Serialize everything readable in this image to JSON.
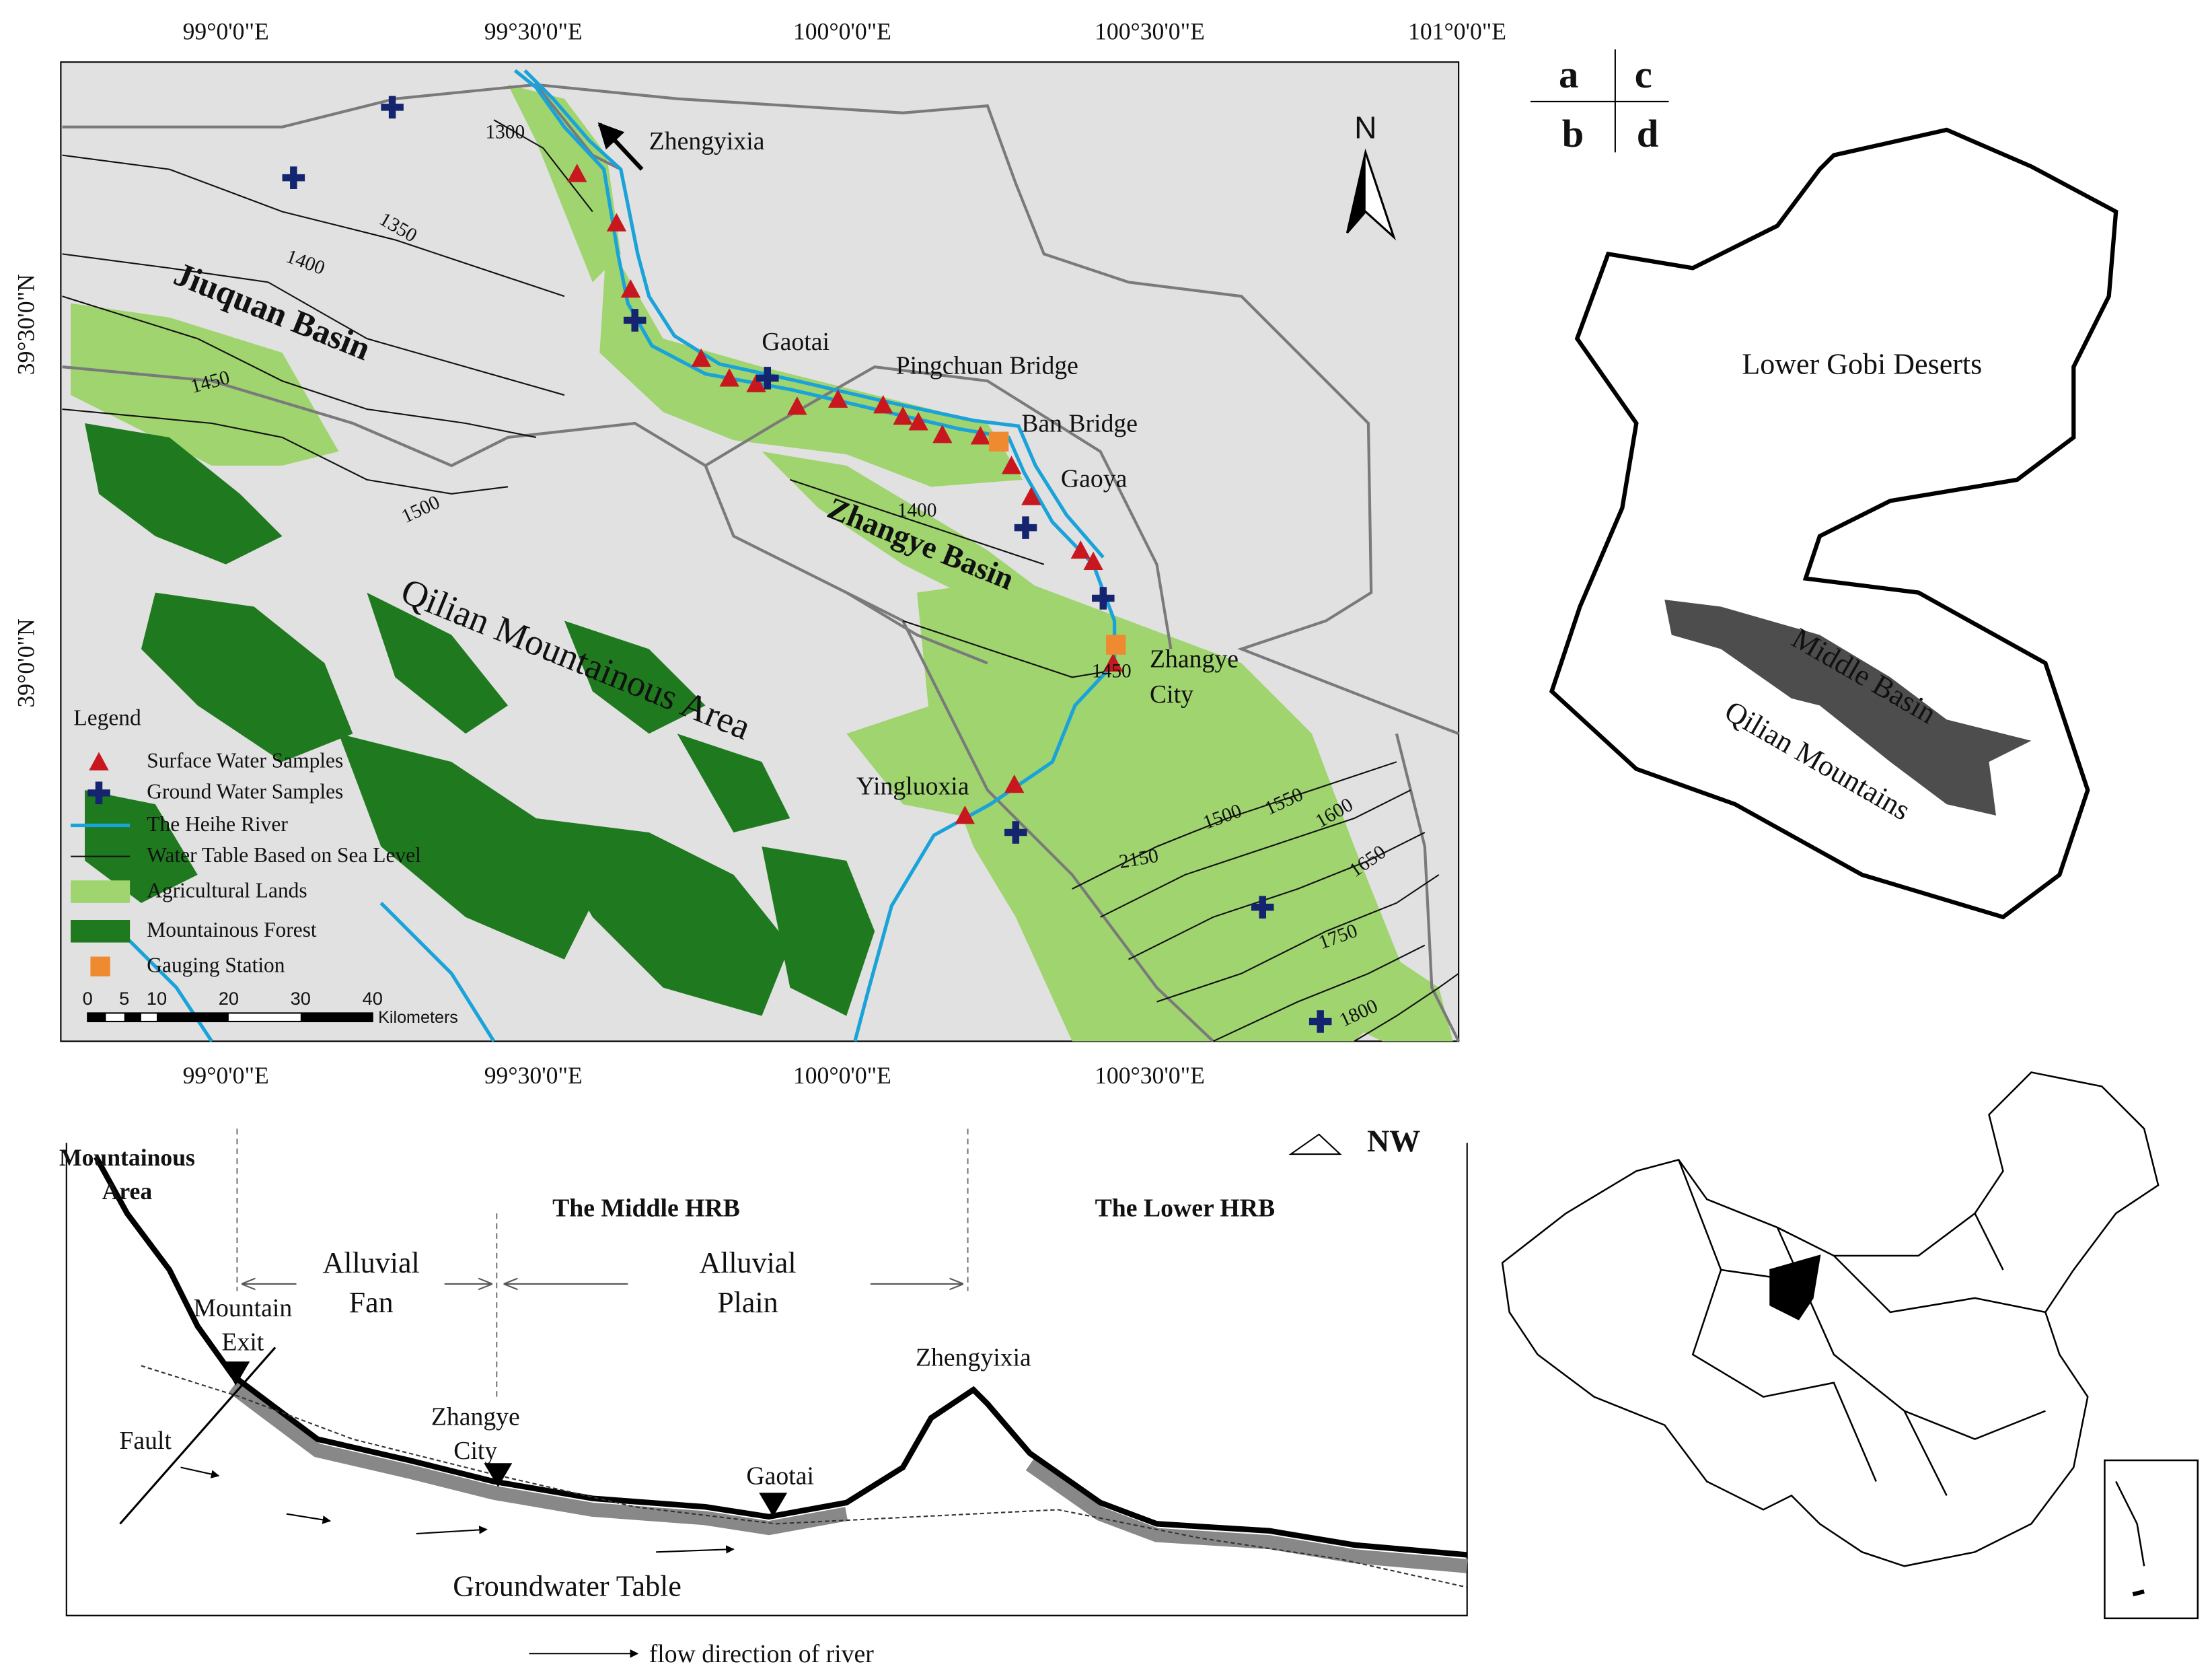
{
  "map_a": {
    "top_longitudes": [
      "99°0'0\"E",
      "99°30'0\"E",
      "100°0'0\"E",
      "100°30'0\"E",
      "101°0'0\"E"
    ],
    "bottom_longitudes": [
      "99°0'0\"E",
      "99°30'0\"E",
      "100°0'0\"E",
      "100°30'0\"E"
    ],
    "latitudes": [
      "39°30'0\"N",
      "39°0'0\"N"
    ],
    "north": "N",
    "places": [
      {
        "lines": [
          "Zhengyixia"
        ]
      },
      {
        "lines": [
          "Jiuquan Basin"
        ]
      },
      {
        "lines": [
          "Gaotai"
        ]
      },
      {
        "lines": [
          "Pingchuan Bridge"
        ]
      },
      {
        "lines": [
          "Ban Bridge"
        ]
      },
      {
        "lines": [
          "Gaoya"
        ]
      },
      {
        "lines": [
          "Zhangye Basin"
        ]
      },
      {
        "lines": [
          "Zhangye",
          "City"
        ]
      },
      {
        "lines": [
          "Qilian Mountainous Area"
        ]
      },
      {
        "lines": [
          "Yingluoxia"
        ]
      }
    ],
    "contours": [
      "1300",
      "1350",
      "1400",
      "1450",
      "1500",
      "1400",
      "1450",
      "1500",
      "1550",
      "1600",
      "1650",
      "2150",
      "1750",
      "1800"
    ],
    "legend": {
      "title": "Legend",
      "items": [
        "Surface Water Samples",
        "Ground Water Samples",
        "The Heihe River",
        "Water Table Based on Sea Level",
        "Agricultural Lands",
        "Mountainous Forest",
        "Gauging Station"
      ]
    },
    "scale": {
      "ticks": [
        "0",
        "5",
        "10",
        "20",
        "30",
        "40"
      ],
      "unit": "Kilometers"
    }
  },
  "panel_letters": [
    "a",
    "c",
    "b",
    "d"
  ],
  "map_c": {
    "labels": [
      "Lower Gobi Deserts",
      "Middle Basin",
      "Qilian Mountains"
    ]
  },
  "profile_b": {
    "direction": "NW",
    "labels": [
      {
        "lines": [
          "Mountainous",
          "Area"
        ]
      },
      {
        "lines": [
          "The Middle HRB"
        ]
      },
      {
        "lines": [
          "The Lower HRB"
        ]
      },
      {
        "lines": [
          "Alluvial",
          "Fan"
        ]
      },
      {
        "lines": [
          "Alluvial",
          "Plain"
        ]
      },
      {
        "lines": [
          "Mountain",
          "Exit"
        ]
      },
      {
        "lines": [
          "Zhengyixia"
        ]
      },
      {
        "lines": [
          "Zhangye",
          "City"
        ]
      },
      {
        "lines": [
          "Fault"
        ]
      },
      {
        "lines": [
          "Gaotai"
        ]
      },
      {
        "lines": [
          "Groundwater Table"
        ]
      },
      {
        "lines": [
          "flow direction of river"
        ]
      }
    ]
  }
}
